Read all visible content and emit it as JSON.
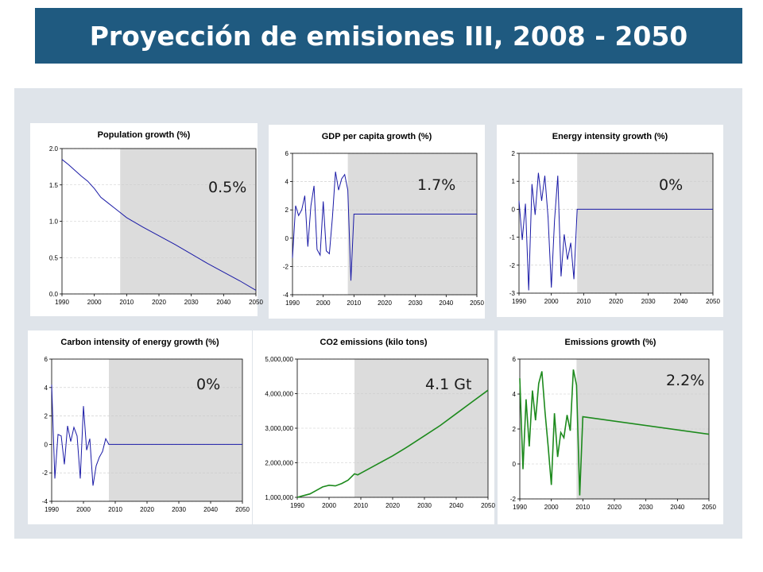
{
  "title": "Proyección de emisiones III, 2008 - 2050",
  "colors": {
    "banner": "#1f5a80",
    "panel_bg": "#dfe4ea",
    "projection_shade": "#dcdcdc",
    "line_blue": "#1a1aa6",
    "line_green": "#1d8a1d"
  },
  "chart_data": [
    {
      "type": "line",
      "title": "Population growth (%)",
      "annotation": "0.5%",
      "color": "line_blue",
      "xlim": [
        1990,
        2050
      ],
      "xticks": [
        "1990",
        "2000",
        "2010",
        "2020",
        "2030",
        "2040",
        "2050"
      ],
      "ylim": [
        0,
        2.0
      ],
      "yticks": [
        "0.0",
        "0.5",
        "1.0",
        "1.5",
        "2.0"
      ],
      "shade_from": 2008,
      "x": [
        1990,
        1992,
        1994,
        1996,
        1998,
        1999,
        2000,
        2002,
        2004,
        2006,
        2008,
        2010,
        2015,
        2020,
        2025,
        2030,
        2035,
        2040,
        2045,
        2050
      ],
      "y": [
        1.85,
        1.78,
        1.7,
        1.62,
        1.55,
        1.5,
        1.45,
        1.33,
        1.26,
        1.19,
        1.12,
        1.05,
        0.92,
        0.8,
        0.68,
        0.55,
        0.42,
        0.3,
        0.18,
        0.05
      ]
    },
    {
      "type": "line",
      "title": "GDP per capita growth (%)",
      "annotation": "1.7%",
      "color": "line_blue",
      "xlim": [
        1990,
        2050
      ],
      "xticks": [
        "1990",
        "2000",
        "2010",
        "2020",
        "2030",
        "2040",
        "2050"
      ],
      "ylim": [
        -4,
        6
      ],
      "yticks": [
        "-4",
        "-2",
        "0",
        "2",
        "4",
        "6"
      ],
      "shade_from": 2008,
      "x": [
        1990,
        1991,
        1992,
        1993,
        1994,
        1995,
        1996,
        1997,
        1998,
        1999,
        2000,
        2001,
        2002,
        2003,
        2004,
        2005,
        2006,
        2007,
        2008,
        2009,
        2010,
        2050
      ],
      "y": [
        -1.4,
        2.3,
        1.6,
        2.0,
        3.0,
        -0.6,
        2.3,
        3.7,
        -0.8,
        -1.2,
        2.6,
        -0.9,
        -1.1,
        1.5,
        4.7,
        3.4,
        4.2,
        4.5,
        3.4,
        -3.0,
        1.7,
        1.7
      ]
    },
    {
      "type": "line",
      "title": "Energy intensity growth (%)",
      "annotation": "0%",
      "color": "line_blue",
      "xlim": [
        1990,
        2050
      ],
      "xticks": [
        "1990",
        "2000",
        "2010",
        "2020",
        "2030",
        "2040",
        "2050"
      ],
      "ylim": [
        -3,
        2
      ],
      "yticks": [
        "-3",
        "-2",
        "-1",
        "0",
        "1",
        "2"
      ],
      "shade_from": 2008,
      "x": [
        1990,
        1991,
        1992,
        1993,
        1994,
        1995,
        1996,
        1997,
        1998,
        1999,
        2000,
        2001,
        2002,
        2003,
        2004,
        2005,
        2006,
        2007,
        2008,
        2050
      ],
      "y": [
        0.3,
        -1.1,
        0.2,
        -2.9,
        0.9,
        -0.2,
        1.3,
        0.3,
        1.2,
        -0.3,
        -2.8,
        -0.4,
        1.2,
        -2.4,
        -0.9,
        -1.8,
        -1.2,
        -2.5,
        0.0,
        0.0
      ]
    },
    {
      "type": "line",
      "title": "Carbon intensity of energy growth (%)",
      "annotation": "0%",
      "color": "line_blue",
      "xlim": [
        1990,
        2050
      ],
      "xticks": [
        "1990",
        "2000",
        "2010",
        "2020",
        "2030",
        "2040",
        "2050"
      ],
      "ylim": [
        -4,
        6
      ],
      "yticks": [
        "-4",
        "-2",
        "0",
        "2",
        "4",
        "6"
      ],
      "shade_from": 2008,
      "x": [
        1990,
        1991,
        1992,
        1993,
        1994,
        1995,
        1996,
        1997,
        1998,
        1999,
        2000,
        2001,
        2002,
        2003,
        2004,
        2005,
        2006,
        2007,
        2008,
        2050
      ],
      "y": [
        4.2,
        -2.4,
        0.7,
        0.6,
        -1.4,
        1.3,
        0.2,
        1.2,
        0.6,
        -2.4,
        2.7,
        -0.4,
        0.4,
        -2.9,
        -1.5,
        -0.9,
        -0.5,
        0.4,
        0.0,
        0.0
      ]
    },
    {
      "type": "line",
      "title": "CO2 emissions (kilo tons)",
      "annotation": "4.1 Gt",
      "color": "line_green",
      "xlim": [
        1990,
        2050
      ],
      "xticks": [
        "1990",
        "2000",
        "2010",
        "2020",
        "2030",
        "2040",
        "2050"
      ],
      "ylim": [
        1000000,
        5000000
      ],
      "yticks": [
        "1,000,000",
        "2,000,000",
        "3,000,000",
        "4,000,000",
        "5,000,000"
      ],
      "shade_from": 2008,
      "x": [
        1990,
        1992,
        1994,
        1996,
        1998,
        2000,
        2002,
        2004,
        2006,
        2008,
        2009,
        2010,
        2015,
        2020,
        2025,
        2030,
        2035,
        2040,
        2045,
        2050
      ],
      "y": [
        1000000,
        1050000,
        1100000,
        1200000,
        1300000,
        1350000,
        1330000,
        1400000,
        1500000,
        1680000,
        1650000,
        1700000,
        1950000,
        2200000,
        2480000,
        2780000,
        3080000,
        3420000,
        3760000,
        4100000
      ]
    },
    {
      "type": "line",
      "title": "Emissions growth (%)",
      "annotation": "2.2%",
      "color": "line_green",
      "xlim": [
        1990,
        2050
      ],
      "xticks": [
        "1990",
        "2000",
        "2010",
        "2020",
        "2030",
        "2040",
        "2050"
      ],
      "ylim": [
        -2,
        6
      ],
      "yticks": [
        "-2",
        "0",
        "2",
        "4",
        "6"
      ],
      "shade_from": 2008,
      "x": [
        1990,
        1991,
        1992,
        1993,
        1994,
        1995,
        1996,
        1997,
        1998,
        1999,
        2000,
        2001,
        2002,
        2003,
        2004,
        2005,
        2006,
        2007,
        2008,
        2009,
        2010,
        2050
      ],
      "y": [
        4.9,
        -0.3,
        3.7,
        1.0,
        4.2,
        2.5,
        4.6,
        5.3,
        3.0,
        1.0,
        -1.2,
        2.9,
        0.4,
        1.8,
        1.5,
        2.8,
        1.9,
        5.4,
        4.5,
        -1.8,
        2.7,
        1.7
      ]
    }
  ]
}
